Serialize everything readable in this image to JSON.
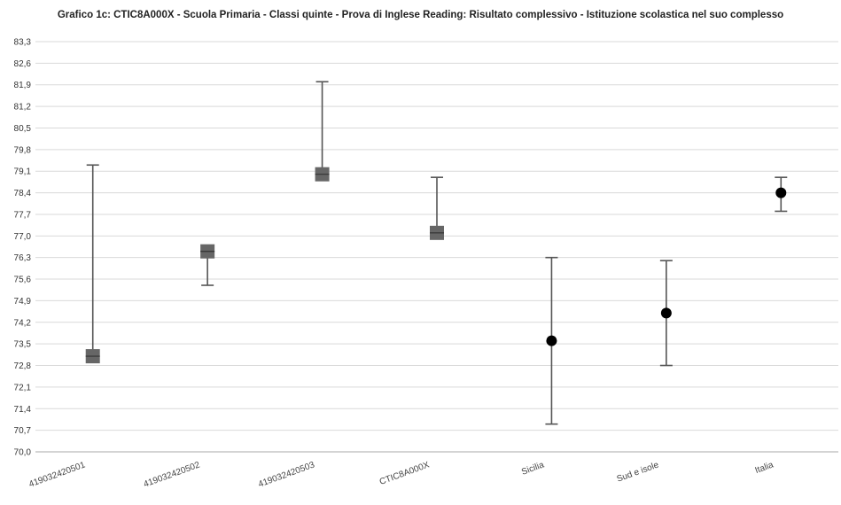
{
  "chart_data": {
    "type": "errorbar",
    "title": "Grafico 1c: CTIC8A000X - Scuola Primaria - Classi quinte - Prova di Inglese Reading: Risultato complessivo - Istituzione scolastica nel suo complesso",
    "xlabel": "",
    "ylabel": "",
    "categories": [
      "419032420501",
      "419032420502",
      "419032420503",
      "CTIC8A000X",
      "Sicilia",
      "Sud e isole",
      "Italia"
    ],
    "ylim": [
      70.0,
      83.3
    ],
    "yticks": [
      "70,0",
      "70,7",
      "71,4",
      "72,1",
      "72,8",
      "73,5",
      "74,2",
      "74,9",
      "75,6",
      "76,3",
      "77,0",
      "77,7",
      "78,4",
      "79,1",
      "79,8",
      "80,5",
      "81,2",
      "81,9",
      "82,6",
      "83,3"
    ],
    "grid": true,
    "legend": "none",
    "series": [
      {
        "values": [
          73.1,
          76.5,
          79.0,
          77.1,
          73.6,
          74.5,
          78.4
        ],
        "lower": [
          73.1,
          75.4,
          79.0,
          77.1,
          70.9,
          72.8,
          77.8
        ],
        "upper": [
          79.3,
          76.5,
          82.0,
          78.9,
          76.3,
          76.2,
          78.9
        ],
        "markers": [
          "square",
          "square",
          "square",
          "square",
          "circle",
          "circle",
          "circle"
        ]
      }
    ],
    "colors": {
      "bar": "#555555",
      "square": "#666666",
      "circle": "#000000",
      "grid": "#d9d9d9",
      "axis": "#aaaaaa"
    }
  }
}
